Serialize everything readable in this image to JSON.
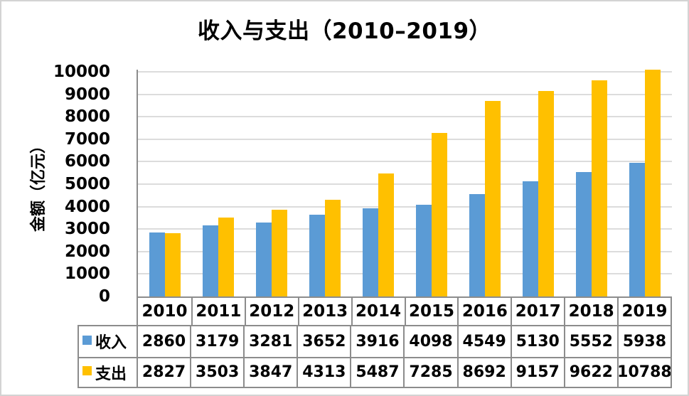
{
  "chart_data": {
    "type": "bar",
    "title": "收入与支出（2010–2019）",
    "xlabel": "",
    "ylabel": "金额（亿元）",
    "ylim": [
      0,
      10000
    ],
    "ytick_step": 1000,
    "yticks": [
      0,
      1000,
      2000,
      3000,
      4000,
      5000,
      6000,
      7000,
      8000,
      9000,
      10000
    ],
    "grid": true,
    "legend_position": "table-left",
    "categories": [
      "2010",
      "2011",
      "2012",
      "2013",
      "2014",
      "2015",
      "2016",
      "2017",
      "2018",
      "2019"
    ],
    "series": [
      {
        "name": "收入",
        "slug": "income",
        "color": "#5B9BD5",
        "values": [
          2860,
          3179,
          3281,
          3652,
          3916,
          4098,
          4549,
          5130,
          5552,
          5938
        ]
      },
      {
        "name": "支出",
        "slug": "expense",
        "color": "#FFC000",
        "values": [
          2827,
          3503,
          3847,
          4313,
          5487,
          7285,
          8692,
          9157,
          9622,
          10788
        ]
      }
    ]
  },
  "ui_colors": {
    "gridline": "#DCDCDC",
    "axis_border": "#8C8C8C",
    "frame_border": "#D3D3D3",
    "background": "#FFFFFF",
    "text": "#000000"
  }
}
